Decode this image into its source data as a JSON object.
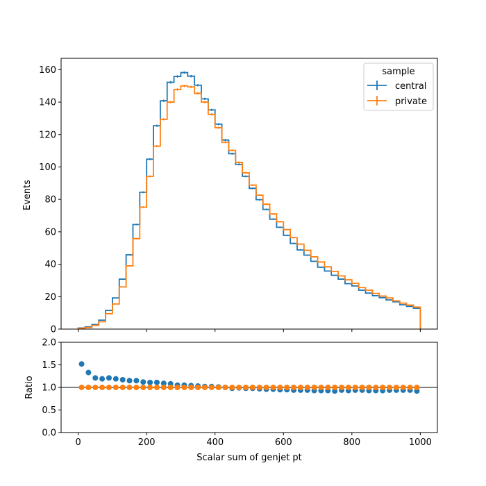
{
  "chart_data": [
    {
      "type": "line",
      "panel": "main",
      "xlabel": "",
      "ylabel": "Events",
      "xlim": [
        -50,
        1050
      ],
      "ylim": [
        0,
        167
      ],
      "x_ticks": [
        0,
        200,
        400,
        600,
        800,
        1000
      ],
      "y_ticks": [
        0,
        20,
        40,
        60,
        80,
        100,
        120,
        140,
        160
      ],
      "y_tick_labels": [
        "0",
        "20",
        "40",
        "60",
        "80",
        "100",
        "120",
        "140",
        "160"
      ],
      "legend": {
        "title": "sample",
        "placement": "top-right"
      },
      "bin_edges": [
        0,
        20,
        40,
        60,
        80,
        100,
        120,
        140,
        160,
        180,
        200,
        220,
        240,
        260,
        280,
        300,
        320,
        340,
        360,
        380,
        400,
        420,
        440,
        460,
        480,
        500,
        520,
        540,
        560,
        580,
        600,
        620,
        640,
        660,
        680,
        700,
        720,
        740,
        760,
        780,
        800,
        820,
        840,
        860,
        880,
        900,
        920,
        940,
        960,
        980,
        1000
      ],
      "series": [
        {
          "name": "central",
          "color": "#1f77b4",
          "values": [
            0.7,
            1.4,
            2.8,
            5.5,
            11.5,
            19.2,
            30.8,
            45.8,
            64.5,
            84.4,
            104.8,
            125.4,
            140.8,
            152.2,
            155.8,
            158.2,
            156.0,
            150.4,
            142.0,
            135.2,
            126.4,
            116.6,
            108.2,
            101.6,
            94.2,
            86.8,
            79.8,
            73.8,
            67.8,
            62.8,
            57.8,
            52.8,
            48.8,
            45.6,
            41.8,
            38.2,
            35.8,
            33.2,
            30.8,
            28.0,
            26.6,
            24.0,
            22.2,
            20.6,
            19.4,
            18.0,
            16.8,
            15.0,
            14.0,
            12.8
          ]
        },
        {
          "name": "private",
          "color": "#ff7f0e",
          "values": [
            0.5,
            1.0,
            2.3,
            4.5,
            9.5,
            15.5,
            26.0,
            39.0,
            55.8,
            75.2,
            94.2,
            112.8,
            129.4,
            140.0,
            147.8,
            150.0,
            149.4,
            145.4,
            140.0,
            132.4,
            124.2,
            115.2,
            110.2,
            102.8,
            96.4,
            88.8,
            82.6,
            77.0,
            71.0,
            66.2,
            61.4,
            56.4,
            52.4,
            48.6,
            44.6,
            41.4,
            38.4,
            35.6,
            32.8,
            30.4,
            28.2,
            25.6,
            24.0,
            22.0,
            20.4,
            19.2,
            17.4,
            16.0,
            14.8,
            13.6
          ]
        }
      ]
    },
    {
      "type": "scatter",
      "panel": "ratio",
      "xlabel": "Scalar sum of genjet pt",
      "ylabel": "Ratio",
      "xlim": [
        -50,
        1050
      ],
      "ylim": [
        0,
        2
      ],
      "x_ticks": [
        0,
        200,
        400,
        600,
        800,
        1000
      ],
      "x_tick_labels": [
        "0",
        "200",
        "400",
        "600",
        "800",
        "1000"
      ],
      "y_ticks": [
        0,
        0.5,
        1.0,
        1.5,
        2.0
      ],
      "y_tick_labels": [
        "0.0",
        "0.5",
        "1.0",
        "1.5",
        "2.0"
      ],
      "reference_line": 1.0,
      "x": [
        10,
        30,
        50,
        70,
        90,
        110,
        130,
        150,
        170,
        190,
        210,
        230,
        250,
        270,
        290,
        310,
        330,
        350,
        370,
        390,
        410,
        430,
        450,
        470,
        490,
        510,
        530,
        550,
        570,
        590,
        610,
        630,
        650,
        670,
        690,
        710,
        730,
        750,
        770,
        790,
        810,
        830,
        850,
        870,
        890,
        910,
        930,
        950,
        970,
        990
      ],
      "series": [
        {
          "name": "central",
          "color": "#1f77b4",
          "values": [
            1.52,
            1.33,
            1.21,
            1.19,
            1.21,
            1.19,
            1.17,
            1.15,
            1.15,
            1.12,
            1.11,
            1.11,
            1.09,
            1.08,
            1.05,
            1.05,
            1.04,
            1.03,
            1.02,
            1.02,
            1.01,
            1.0,
            0.98,
            0.99,
            0.98,
            0.98,
            0.97,
            0.96,
            0.96,
            0.95,
            0.95,
            0.94,
            0.94,
            0.94,
            0.93,
            0.93,
            0.93,
            0.92,
            0.94,
            0.93,
            0.94,
            0.94,
            0.93,
            0.93,
            0.93,
            0.94,
            0.94,
            0.94,
            0.94,
            0.92
          ]
        },
        {
          "name": "private",
          "color": "#ff7f0e",
          "values": [
            1.0,
            1.0,
            1.0,
            1.0,
            1.0,
            1.0,
            1.0,
            1.0,
            1.0,
            1.0,
            1.0,
            1.0,
            1.0,
            1.0,
            1.0,
            1.0,
            1.0,
            1.0,
            1.0,
            1.0,
            1.0,
            1.0,
            1.0,
            1.0,
            1.0,
            1.0,
            1.0,
            1.0,
            1.0,
            1.0,
            1.0,
            1.0,
            1.0,
            1.0,
            1.0,
            1.0,
            1.0,
            1.0,
            1.0,
            1.0,
            1.0,
            1.0,
            1.0,
            1.0,
            1.0,
            1.0,
            1.0,
            1.0,
            1.0,
            1.0
          ]
        }
      ]
    }
  ]
}
